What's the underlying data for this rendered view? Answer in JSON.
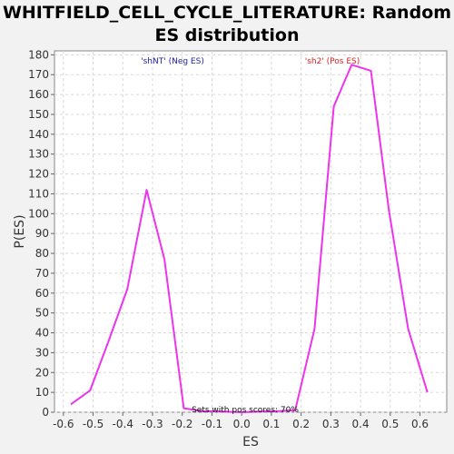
{
  "chart_data": {
    "type": "line",
    "title_line1": "WHITFIELD_CELL_CYCLE_LITERATURE: Random",
    "title_line2": "ES distribution",
    "xlabel": "ES",
    "ylabel": "P(ES)",
    "xlim": [
      -0.63,
      0.69
    ],
    "ylim": [
      0,
      182
    ],
    "x_ticks": [
      -0.6,
      -0.5,
      -0.4,
      -0.3,
      -0.2,
      -0.1,
      0.0,
      0.1,
      0.2,
      0.3,
      0.4,
      0.5,
      0.6
    ],
    "x_tick_labels": [
      "-0.6",
      "-0.5",
      "-0.4",
      "-0.3",
      "-0.2",
      "-0.1",
      "0.0",
      "0.1",
      "0.2",
      "0.3",
      "0.4",
      "0.5",
      "0.6"
    ],
    "y_ticks": [
      0,
      10,
      20,
      30,
      40,
      50,
      60,
      70,
      80,
      90,
      100,
      110,
      120,
      130,
      140,
      150,
      160,
      170,
      180
    ],
    "grid": true,
    "series": [
      {
        "name": "Random ES distribution",
        "color": "#ee33ee",
        "x": [
          -0.575,
          -0.51,
          -0.45,
          -0.385,
          -0.32,
          -0.26,
          -0.195,
          -0.13,
          -0.065,
          0.0,
          0.06,
          0.12,
          0.18,
          0.245,
          0.31,
          0.37,
          0.435,
          0.495,
          0.56,
          0.625
        ],
        "y": [
          4,
          11,
          35,
          62,
          112,
          77,
          2,
          0.5,
          0.3,
          0,
          0.3,
          0.5,
          1,
          42,
          154,
          175,
          172,
          102,
          42,
          10
        ]
      }
    ],
    "annotations": {
      "neg_label": "'shNT' (Neg ES)",
      "neg_color": "#2222aa",
      "pos_label": "'sh2' (Pos ES)",
      "pos_color": "#dd2222",
      "pos_scores_text": "Sets with pos scores: 70%"
    }
  }
}
